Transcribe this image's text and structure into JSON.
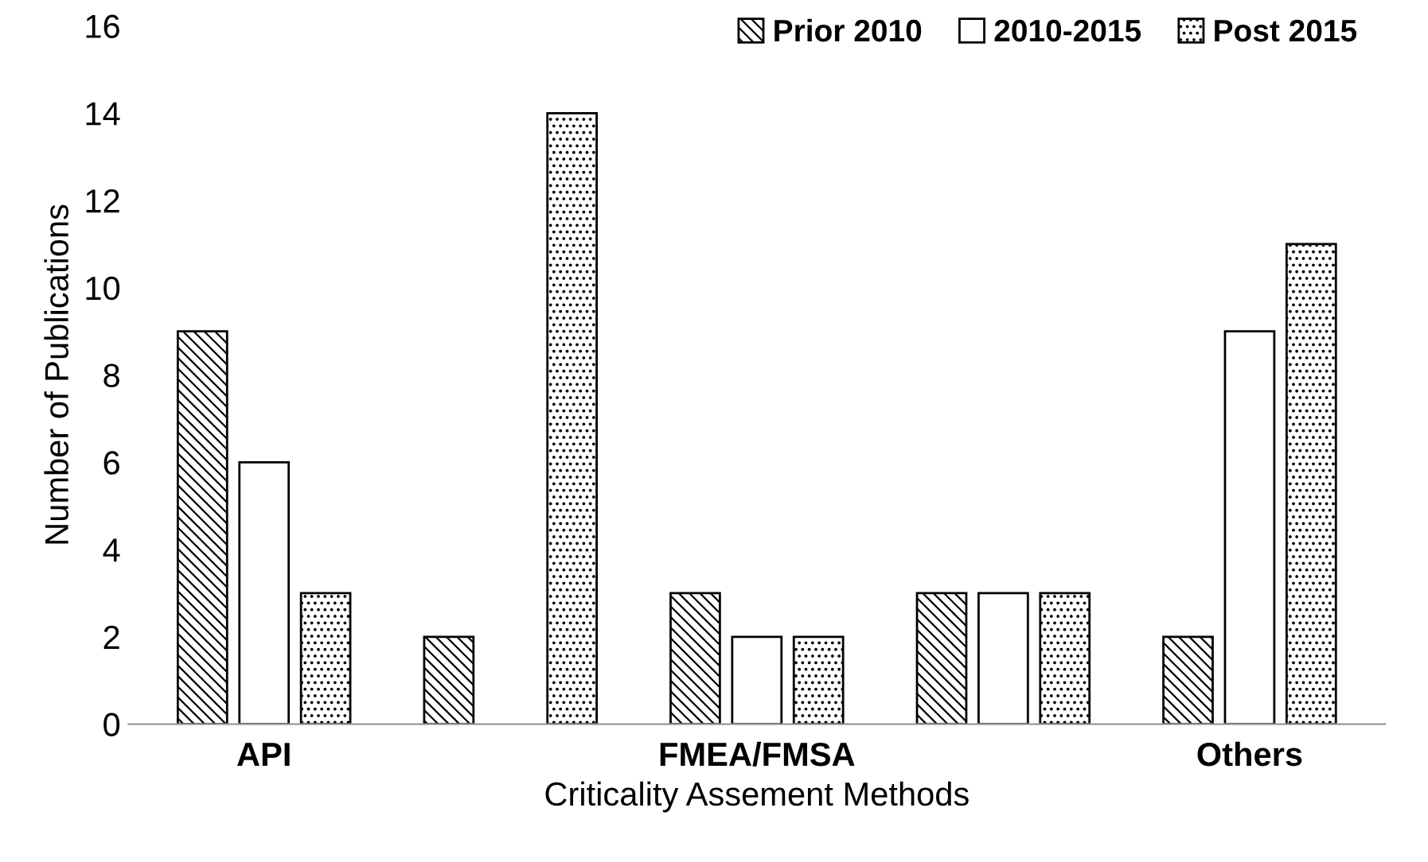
{
  "chart_data": {
    "type": "bar",
    "xlabel": "Criticality Assement Methods",
    "ylabel": "Number of Publications",
    "categories": [
      "API",
      null,
      "FMEA/FMSA",
      null,
      "Others"
    ],
    "series": [
      {
        "name": "Prior 2010",
        "color": "#000000",
        "values": [
          9,
          2,
          3,
          3,
          2
        ]
      },
      {
        "name": "2010-2015",
        "color": "#000000",
        "values": [
          6,
          null,
          2,
          3,
          9
        ]
      },
      {
        "name": "Post 2015",
        "color": "#000000",
        "values": [
          3,
          14,
          2,
          3,
          11
        ]
      }
    ],
    "ylim": [
      0,
      16
    ],
    "yticks": [
      0,
      2,
      4,
      6,
      8,
      10,
      12,
      14,
      16
    ],
    "grid": false,
    "legend": "top right"
  }
}
